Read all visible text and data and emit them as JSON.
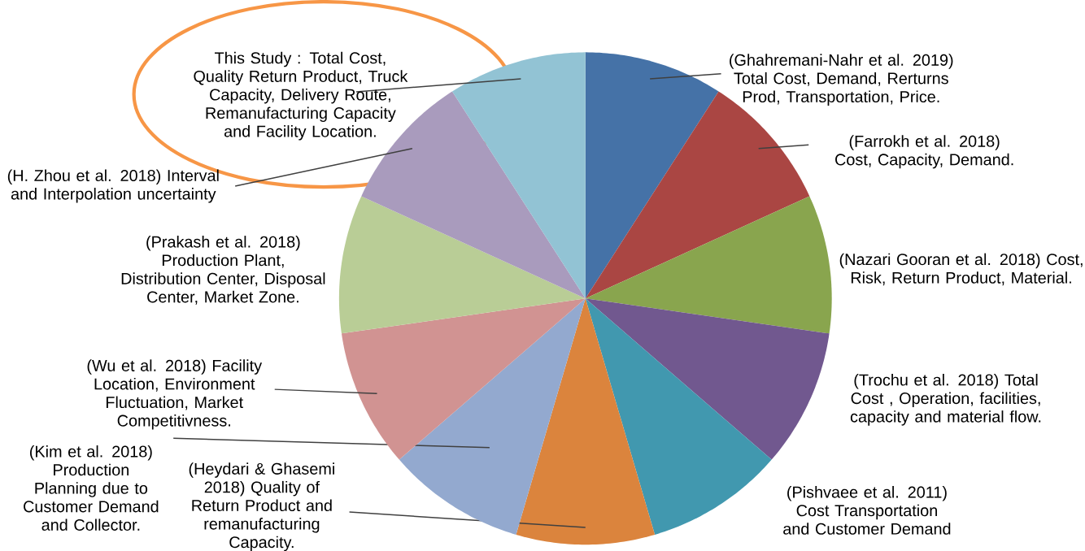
{
  "chart_data": {
    "type": "pie",
    "categories": [
      "(Ghahremani-Nahr et al. 2019) Total Cost, Demand, Rerturns Prod, Transportation, Price.",
      "(Farrokh et al. 2018) Cost, Capacity, Demand.",
      "(Nazari Gooran et al. 2018) Cost, Risk, Return Product, Material.",
      "(Trochu et al. 2018) Total Cost , Operation, facilities, capacity and material flow.",
      "(Pishvaee et al. 2011) Cost Transportation and Customer Demand",
      "(Heydari & Ghasemi 2018) Quality of Return Product and remanufacturing Capacity.",
      "(Kim et al. 2018) Production Planning due to Customer Demand and Collector.",
      "(Wu et al. 2018) Facility Location, Environment Fluctuation, Market Competitivness.",
      "(Prakash et al. 2018) Production Plant, Distribution Center, Disposal Center, Market Zone.",
      "(H. Zhou et al. 2018) Interval and Interpolation uncertainty",
      "This Study : Total Cost, Quality Return Product, Truck Capacity, Delivery Route, Remanufacturing Capacity and Facility Location."
    ],
    "values": [
      9.09,
      9.09,
      9.09,
      9.09,
      9.09,
      9.09,
      9.09,
      9.09,
      9.09,
      9.09,
      9.09
    ],
    "colors": [
      "#4572a7",
      "#aa4643",
      "#89a54e",
      "#71588f",
      "#4198af",
      "#db843d",
      "#93a9cf",
      "#d19392",
      "#b9cd96",
      "#a99bbd",
      "#92c3d4"
    ]
  }
}
